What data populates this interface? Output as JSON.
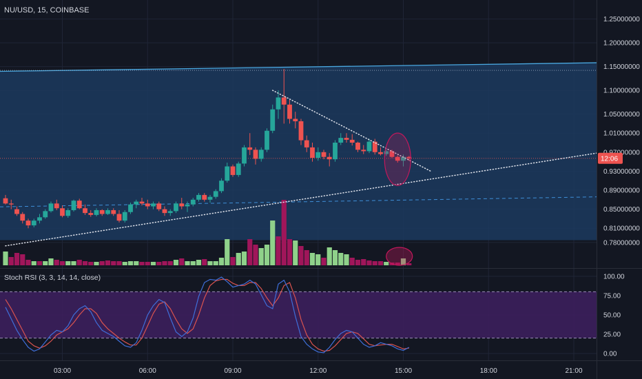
{
  "header": {
    "symbol": "NU/USD, 15, COINBASE"
  },
  "colors": {
    "background": "#131722",
    "grid": "#1f2536",
    "up": "#26a69a",
    "down": "#ef5350",
    "vol_up": "#8fd18a",
    "vol_down": "#a0165a",
    "channel_fill": "#1c3a5e",
    "channel_line": "#4aa8e0",
    "rsi_band": "#3c1f5c",
    "stoch_k": "#3f6fd9",
    "stoch_d": "#d9534f",
    "price_tag": "#ef5350",
    "highlight": "#c2185b"
  },
  "chart_data": [
    {
      "type": "candlestick",
      "title": "NU/USD, 15, COINBASE",
      "price_axis_ticks": [
        "1.25000000",
        "1.20000000",
        "1.15000000",
        "1.10000000",
        "1.05000000",
        "1.01000000",
        "0.97000000",
        "0.93000000",
        "0.89000000",
        "0.85000000",
        "0.81000000",
        "0.78000000"
      ],
      "price_axis_values": [
        1.25,
        1.2,
        1.15,
        1.1,
        1.05,
        1.01,
        0.97,
        0.93,
        0.89,
        0.85,
        0.81,
        0.78
      ],
      "time_axis_ticks": [
        "03:00",
        "06:00",
        "09:00",
        "12:00",
        "15:00",
        "18:00",
        "21:00"
      ],
      "time_axis_positions_bar": [
        10,
        25,
        40,
        55,
        70,
        85,
        100
      ],
      "current_price_label": "12:06",
      "current_price": 0.957,
      "candles": [
        [
          0.873,
          0.88,
          0.86,
          0.862
        ],
        [
          0.862,
          0.87,
          0.85,
          0.86
        ],
        [
          0.85,
          0.856,
          0.836,
          0.84
        ],
        [
          0.84,
          0.844,
          0.82,
          0.826
        ],
        [
          0.826,
          0.83,
          0.81,
          0.816
        ],
        [
          0.816,
          0.83,
          0.812,
          0.826
        ],
        [
          0.826,
          0.84,
          0.82,
          0.833
        ],
        [
          0.833,
          0.85,
          0.83,
          0.846
        ],
        [
          0.846,
          0.866,
          0.843,
          0.862
        ],
        [
          0.862,
          0.87,
          0.848,
          0.852
        ],
        [
          0.852,
          0.858,
          0.833,
          0.836
        ],
        [
          0.836,
          0.852,
          0.832,
          0.848
        ],
        [
          0.848,
          0.87,
          0.845,
          0.868
        ],
        [
          0.868,
          0.872,
          0.85,
          0.852
        ],
        [
          0.852,
          0.86,
          0.838,
          0.842
        ],
        [
          0.842,
          0.848,
          0.834,
          0.838
        ],
        [
          0.838,
          0.852,
          0.835,
          0.848
        ],
        [
          0.848,
          0.85,
          0.836,
          0.84
        ],
        [
          0.84,
          0.852,
          0.838,
          0.848
        ],
        [
          0.848,
          0.852,
          0.836,
          0.84
        ],
        [
          0.84,
          0.848,
          0.822,
          0.826
        ],
        [
          0.826,
          0.848,
          0.822,
          0.844
        ],
        [
          0.844,
          0.864,
          0.84,
          0.86
        ],
        [
          0.86,
          0.87,
          0.852,
          0.866
        ],
        [
          0.866,
          0.874,
          0.858,
          0.862
        ],
        [
          0.862,
          0.87,
          0.85,
          0.856
        ],
        [
          0.856,
          0.866,
          0.85,
          0.862
        ],
        [
          0.862,
          0.866,
          0.846,
          0.85
        ],
        [
          0.85,
          0.856,
          0.836,
          0.842
        ],
        [
          0.842,
          0.85,
          0.836,
          0.846
        ],
        [
          0.846,
          0.866,
          0.842,
          0.862
        ],
        [
          0.862,
          0.874,
          0.85,
          0.856
        ],
        [
          0.856,
          0.866,
          0.844,
          0.86
        ],
        [
          0.86,
          0.874,
          0.856,
          0.87
        ],
        [
          0.87,
          0.884,
          0.866,
          0.88
        ],
        [
          0.88,
          0.884,
          0.866,
          0.87
        ],
        [
          0.87,
          0.88,
          0.864,
          0.876
        ],
        [
          0.876,
          0.892,
          0.872,
          0.888
        ],
        [
          0.888,
          0.915,
          0.884,
          0.91
        ],
        [
          0.91,
          0.948,
          0.906,
          0.94
        ],
        [
          0.94,
          0.944,
          0.918,
          0.922
        ],
        [
          0.922,
          0.95,
          0.918,
          0.946
        ],
        [
          0.946,
          0.985,
          0.94,
          0.98
        ],
        [
          0.98,
          1.01,
          0.964,
          0.975
        ],
        [
          0.975,
          0.98,
          0.944,
          0.956
        ],
        [
          0.956,
          0.98,
          0.95,
          0.975
        ],
        [
          0.975,
          1.02,
          0.97,
          1.015
        ],
        [
          1.015,
          1.07,
          1.01,
          1.06
        ],
        [
          1.06,
          1.1,
          1.04,
          1.085
        ],
        [
          1.085,
          1.145,
          1.03,
          1.07
        ],
        [
          1.07,
          1.08,
          1.03,
          1.04
        ],
        [
          1.04,
          1.055,
          1.02,
          1.035
        ],
        [
          1.035,
          1.04,
          0.985,
          0.995
        ],
        [
          0.995,
          1.005,
          0.97,
          0.98
        ],
        [
          0.98,
          0.99,
          0.95,
          0.958
        ],
        [
          0.958,
          0.98,
          0.952,
          0.97
        ],
        [
          0.97,
          0.975,
          0.955,
          0.96
        ],
        [
          0.96,
          0.968,
          0.94,
          0.955
        ],
        [
          0.955,
          0.995,
          0.95,
          0.99
        ],
        [
          0.99,
          1.01,
          0.985,
          1.0
        ],
        [
          1.0,
          1.01,
          0.99,
          0.996
        ],
        [
          0.996,
          1.008,
          0.984,
          0.99
        ],
        [
          0.99,
          0.992,
          0.97,
          0.975
        ],
        [
          0.975,
          0.985,
          0.966,
          0.972
        ],
        [
          0.972,
          0.998,
          0.968,
          0.992
        ],
        [
          0.992,
          0.998,
          0.965,
          0.97
        ],
        [
          0.97,
          0.98,
          0.963,
          0.966
        ],
        [
          0.966,
          0.976,
          0.962,
          0.972
        ],
        [
          0.972,
          0.975,
          0.958,
          0.96
        ],
        [
          0.96,
          0.963,
          0.948,
          0.952
        ],
        [
          0.952,
          0.965,
          0.94,
          0.96
        ],
        [
          0.96,
          0.962,
          0.952,
          0.957
        ]
      ],
      "volumes": [
        [
          20,
          "up"
        ],
        [
          12,
          "down"
        ],
        [
          18,
          "down"
        ],
        [
          16,
          "down"
        ],
        [
          8,
          "down"
        ],
        [
          6,
          "up"
        ],
        [
          6,
          "down"
        ],
        [
          6,
          "up"
        ],
        [
          10,
          "up"
        ],
        [
          8,
          "down"
        ],
        [
          6,
          "down"
        ],
        [
          6,
          "up"
        ],
        [
          6,
          "up"
        ],
        [
          8,
          "down"
        ],
        [
          6,
          "down"
        ],
        [
          5,
          "down"
        ],
        [
          5,
          "up"
        ],
        [
          6,
          "down"
        ],
        [
          7,
          "down"
        ],
        [
          6,
          "down"
        ],
        [
          6,
          "down"
        ],
        [
          5,
          "up"
        ],
        [
          6,
          "up"
        ],
        [
          6,
          "up"
        ],
        [
          5,
          "down"
        ],
        [
          5,
          "down"
        ],
        [
          5,
          "up"
        ],
        [
          5,
          "down"
        ],
        [
          6,
          "down"
        ],
        [
          6,
          "down"
        ],
        [
          8,
          "up"
        ],
        [
          10,
          "down"
        ],
        [
          6,
          "up"
        ],
        [
          6,
          "up"
        ],
        [
          8,
          "up"
        ],
        [
          9,
          "down"
        ],
        [
          6,
          "up"
        ],
        [
          6,
          "up"
        ],
        [
          11,
          "up"
        ],
        [
          38,
          "up"
        ],
        [
          12,
          "down"
        ],
        [
          18,
          "up"
        ],
        [
          20,
          "up"
        ],
        [
          38,
          "down"
        ],
        [
          30,
          "down"
        ],
        [
          25,
          "up"
        ],
        [
          30,
          "up"
        ],
        [
          65,
          "up"
        ],
        [
          42,
          "down"
        ],
        [
          95,
          "down"
        ],
        [
          38,
          "down"
        ],
        [
          36,
          "up"
        ],
        [
          28,
          "down"
        ],
        [
          22,
          "down"
        ],
        [
          18,
          "up"
        ],
        [
          16,
          "up"
        ],
        [
          11,
          "down"
        ],
        [
          26,
          "up"
        ],
        [
          22,
          "up"
        ],
        [
          18,
          "up"
        ],
        [
          16,
          "up"
        ],
        [
          11,
          "down"
        ],
        [
          8,
          "down"
        ],
        [
          9,
          "down"
        ],
        [
          7,
          "down"
        ],
        [
          6,
          "down"
        ],
        [
          6,
          "down"
        ],
        [
          5,
          "up"
        ],
        [
          4,
          "down"
        ],
        [
          4,
          "down"
        ],
        [
          10,
          "up"
        ],
        [
          3,
          "down"
        ]
      ]
    },
    {
      "type": "line",
      "title": "Stoch RSI (3, 3, 14, 14, close)",
      "y_axis_ticks": [
        "100.00",
        "75.00",
        "50.00",
        "25.00",
        "0.00"
      ],
      "y_axis_values": [
        100,
        75,
        50,
        25,
        0
      ],
      "ylim": [
        0,
        100
      ],
      "band": [
        20,
        80
      ],
      "series": [
        {
          "key": "k",
          "color": "#3f6fd9",
          "values": [
            60,
            45,
            30,
            18,
            8,
            3,
            6,
            15,
            24,
            30,
            28,
            36,
            50,
            58,
            62,
            54,
            40,
            30,
            26,
            22,
            16,
            10,
            8,
            14,
            30,
            50,
            62,
            70,
            66,
            46,
            28,
            22,
            28,
            46,
            74,
            92,
            96,
            95,
            99,
            93,
            86,
            88,
            90,
            95,
            90,
            76,
            62,
            58,
            90,
            95,
            80,
            48,
            22,
            12,
            6,
            2,
            1,
            8,
            18,
            26,
            30,
            28,
            20,
            12,
            8,
            10,
            14,
            12,
            10,
            6,
            4,
            8
          ]
        },
        {
          "key": "d",
          "color": "#d9534f",
          "values": [
            70,
            58,
            44,
            30,
            16,
            10,
            7,
            10,
            16,
            24,
            28,
            32,
            40,
            50,
            58,
            58,
            52,
            40,
            32,
            26,
            20,
            15,
            11,
            11,
            20,
            36,
            52,
            64,
            67,
            58,
            44,
            32,
            26,
            32,
            50,
            72,
            88,
            94,
            96,
            96,
            91,
            88,
            88,
            92,
            92,
            84,
            72,
            62,
            72,
            88,
            92,
            72,
            44,
            24,
            12,
            6,
            3,
            4,
            10,
            18,
            26,
            28,
            26,
            19,
            12,
            10,
            11,
            12,
            12,
            9,
            6,
            7
          ]
        }
      ]
    }
  ],
  "annotations": {
    "current_price_line": 0.957,
    "channel_upper": [
      1.14,
      1.158
    ],
    "channel_lower_at_end": 0.785,
    "dashed_level": [
      0.855,
      0.876
    ],
    "high_dotted_level": 1.142,
    "desc_trendline": [
      [
        47,
        1.1
      ],
      [
        75,
        0.955
      ]
    ],
    "asc_trendline": [
      [
        0,
        0.773
      ],
      [
        85,
        0.957
      ]
    ],
    "rsi_dashed_levels": [
      80,
      20
    ]
  }
}
